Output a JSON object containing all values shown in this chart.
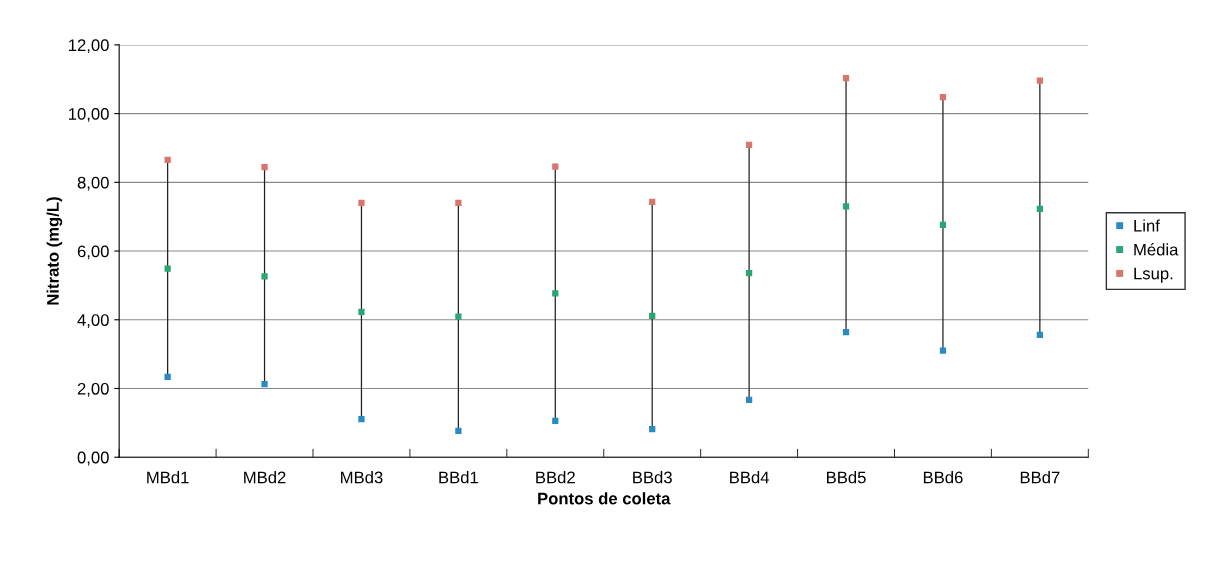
{
  "chart_data": {
    "type": "scatter",
    "xlabel": "Pontos de coleta",
    "ylabel": "Nitrato (mg/L)",
    "categories": [
      "MBd1",
      "MBd2",
      "MBd3",
      "BBd1",
      "BBd2",
      "BBd3",
      "BBd4",
      "BBd5",
      "BBd6",
      "BBd7"
    ],
    "series": [
      {
        "name": "Linf",
        "color": "#2a8ac4",
        "values": [
          2.34,
          2.13,
          1.11,
          0.77,
          1.06,
          0.82,
          1.67,
          3.64,
          3.1,
          3.56
        ]
      },
      {
        "name": "Média",
        "color": "#2aa574",
        "values": [
          5.49,
          5.26,
          4.23,
          4.09,
          4.77,
          4.11,
          5.36,
          7.3,
          6.76,
          7.23
        ]
      },
      {
        "name": "Lsup.",
        "color": "#d8766e",
        "values": [
          8.65,
          8.44,
          7.4,
          7.4,
          8.46,
          7.43,
          9.09,
          11.03,
          10.48,
          10.96
        ]
      }
    ],
    "ylim": [
      0,
      12
    ],
    "yticks": [
      {
        "value": 0,
        "label": "0,00"
      },
      {
        "value": 2,
        "label": "2,00"
      },
      {
        "value": 4,
        "label": "4,00"
      },
      {
        "value": 6,
        "label": "6,00"
      },
      {
        "value": 8,
        "label": "8,00"
      },
      {
        "value": 10,
        "label": "10,00"
      },
      {
        "value": 12,
        "label": "12,00"
      }
    ],
    "grid": "y",
    "legend": "right",
    "marker": "square"
  }
}
